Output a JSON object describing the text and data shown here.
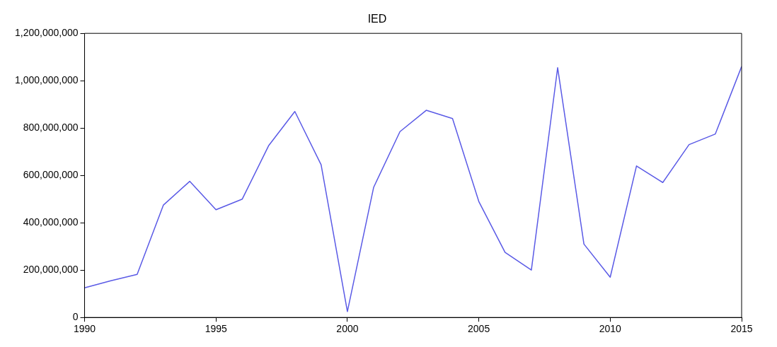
{
  "chart_data": {
    "type": "line",
    "title": "IED",
    "x": [
      1990,
      1991,
      1992,
      1993,
      1994,
      1995,
      1996,
      1997,
      1998,
      1999,
      2000,
      2001,
      2002,
      2003,
      2004,
      2005,
      2006,
      2007,
      2008,
      2009,
      2010,
      2011,
      2012,
      2013,
      2014,
      2015
    ],
    "series": [
      {
        "color": "#5a5ae6",
        "values": [
          125000000,
          155000000,
          182000000,
          475000000,
          575000000,
          455000000,
          500000000,
          725000000,
          870000000,
          645000000,
          25000000,
          550000000,
          785000000,
          875000000,
          840000000,
          490000000,
          275000000,
          200000000,
          1055000000,
          310000000,
          170000000,
          640000000,
          570000000,
          730000000,
          775000000,
          1060000000
        ]
      }
    ],
    "xlim": [
      1990,
      2015
    ],
    "xticks": [
      1990,
      1995,
      2000,
      2005,
      2010,
      2015
    ],
    "ylim": [
      0,
      1200000000
    ],
    "yticks": [
      {
        "value": 0,
        "label": "0"
      },
      {
        "value": 200000000,
        "label": "200,000,000"
      },
      {
        "value": 400000000,
        "label": "400,000,000"
      },
      {
        "value": 600000000,
        "label": "600,000,000"
      },
      {
        "value": 800000000,
        "label": "800,000,000"
      },
      {
        "value": 1000000000,
        "label": "1,000,000,000"
      },
      {
        "value": 1200000000,
        "label": "1,200,000,000"
      }
    ],
    "grid": false,
    "legend": false,
    "marker": "none",
    "line_style": "solid"
  }
}
